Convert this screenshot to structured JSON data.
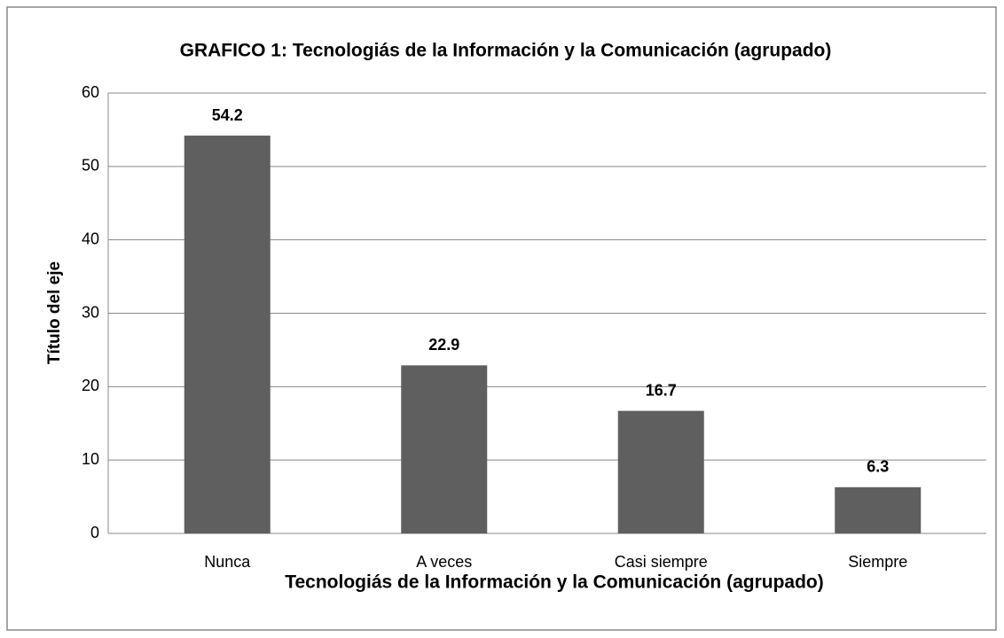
{
  "chart_data": {
    "type": "bar",
    "title": "GRAFICO 1: Tecnologiás de la Información y la Comunicación (agrupado)",
    "x_label": "Tecnologiás de la Información y la Comunicación (agrupado)",
    "y_label": "Título del eje",
    "categories": [
      "Nunca",
      "A veces",
      "Casi siempre",
      "Siempre"
    ],
    "values": [
      54.2,
      22.9,
      16.7,
      6.3
    ],
    "color": "#5f5f5f",
    "ylim": [
      0,
      60
    ],
    "yticks": [
      0,
      10,
      20,
      30,
      40,
      50,
      60
    ],
    "grid": true
  }
}
